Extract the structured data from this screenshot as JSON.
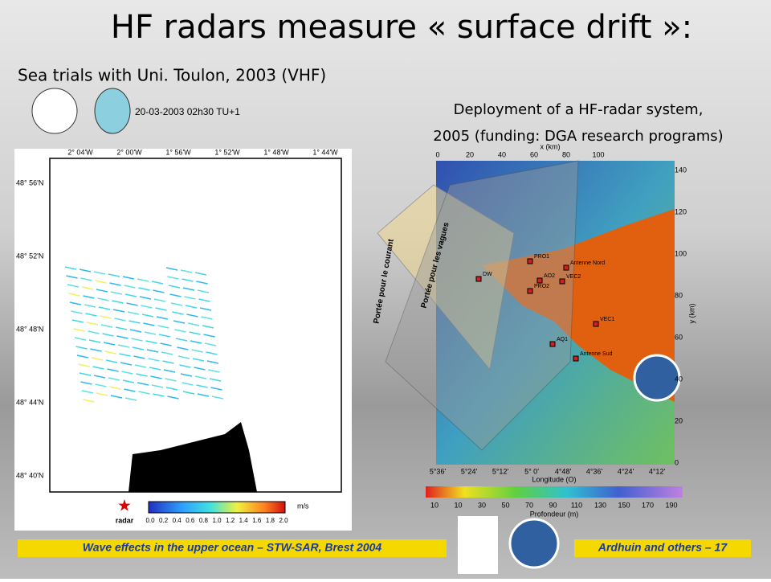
{
  "title": "HF radars measure « surface drift »:",
  "subtitle": "Sea trials with Uni. Toulon, 2003 (VHF)",
  "left_panel": {
    "date_stamp": "20-03-2003 02h30 TU+1",
    "lon_ticks": [
      "2° 04'W",
      "2° 00'W",
      "1° 56'W",
      "1° 52'W",
      "1° 48'W",
      "1° 44'W"
    ],
    "lat_ticks": [
      "48° 56'N",
      "48° 52'N",
      "48° 48'N",
      "48° 44'N",
      "48° 40'N"
    ],
    "colorbar_ticks": [
      "0.0",
      "0.2",
      "0.4",
      "0.6",
      "0.8",
      "1.0",
      "1.2",
      "1.4",
      "1.6",
      "1.8",
      "2.0"
    ],
    "colorbar_unit": "m/s",
    "legend_label": "radar"
  },
  "right_panel": {
    "caption": [
      "Deployment of a HF-radar system,",
      "2005 (funding: DGA research programs)"
    ],
    "x_axis_label": "x (km)",
    "x_ticks": [
      "0",
      "20",
      "40",
      "60",
      "80",
      "100"
    ],
    "y_axis_label": "y (km)",
    "y_ticks": [
      "140",
      "120",
      "100",
      "80",
      "60",
      "40",
      "20",
      "0"
    ],
    "lon_ticks": [
      "5°36'",
      "5°24'",
      "5°12'",
      "5° 0'",
      "4°48'",
      "4°36'",
      "4°24'",
      "4°12'"
    ],
    "lon_label": "Longitude (O)",
    "depth_ticks": [
      "10",
      "10",
      "30",
      "50",
      "70",
      "90",
      "110",
      "130",
      "150",
      "170",
      "190"
    ],
    "depth_label": "Profondeur (m)",
    "range_labels": [
      "Portée pour le courant",
      "Portée pour les vagues"
    ],
    "stations": [
      "PRO1",
      "Antenne Nord",
      "DW",
      "AO2",
      "VEC2",
      "PRO2",
      "VEC1",
      "AQ1",
      "Antenne Sud"
    ]
  },
  "footer": {
    "left": "Wave effects in the upper ocean – STW-SAR, Brest 2004",
    "right": "Ardhuin and others – 17"
  }
}
